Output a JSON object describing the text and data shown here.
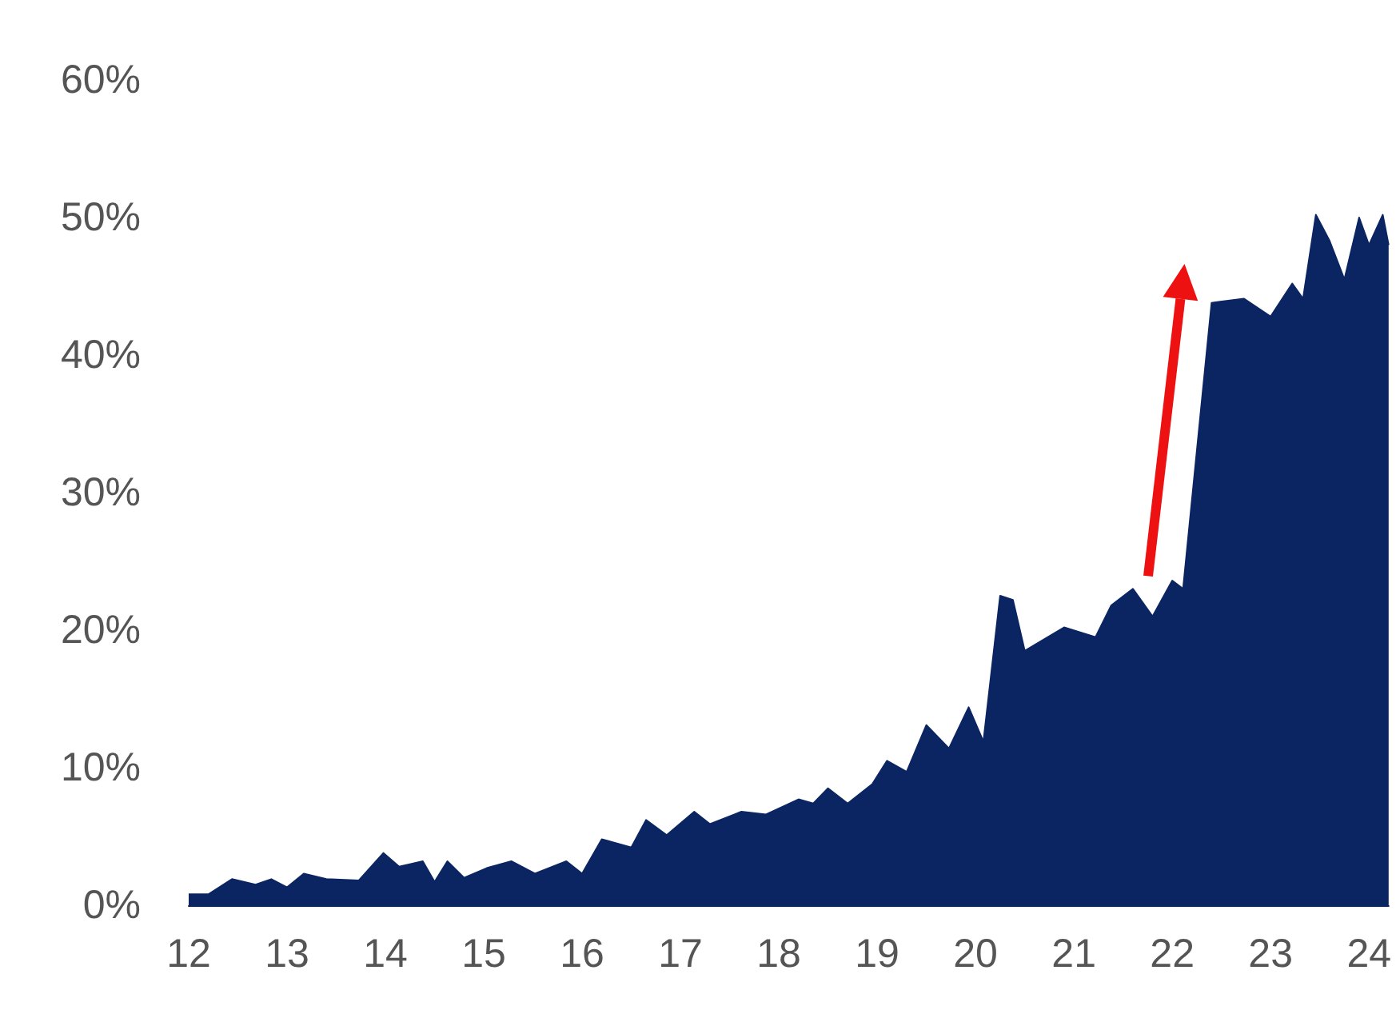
{
  "chart_data": {
    "type": "area",
    "grid": false,
    "xlim": [
      12,
      24.2
    ],
    "xticks": [
      12,
      13,
      14,
      15,
      16,
      17,
      18,
      19,
      20,
      21,
      22,
      23,
      24
    ],
    "ylim": [
      0,
      60
    ],
    "yticks": [
      {
        "value": 0,
        "label": "0%"
      },
      {
        "value": 10,
        "label": "10%"
      },
      {
        "value": 20,
        "label": "20%"
      },
      {
        "value": 30,
        "label": "30%"
      },
      {
        "value": 40,
        "label": "40%"
      },
      {
        "value": 50,
        "label": "50%"
      },
      {
        "value": 60,
        "label": "60%"
      }
    ],
    "series": [
      {
        "color": "#0b2562",
        "x": [
          12.0,
          12.2,
          12.44,
          12.68,
          12.84,
          13.0,
          13.17,
          13.4,
          13.73,
          13.98,
          14.14,
          14.38,
          14.5,
          14.63,
          14.8,
          15.03,
          15.28,
          15.52,
          15.84,
          16.0,
          16.2,
          16.5,
          16.65,
          16.86,
          17.14,
          17.3,
          17.62,
          17.87,
          18.2,
          18.35,
          18.5,
          18.7,
          18.95,
          19.1,
          19.3,
          19.5,
          19.73,
          19.93,
          20.08,
          20.25,
          20.38,
          20.5,
          20.9,
          21.22,
          21.38,
          21.6,
          21.8,
          22.0,
          22.11,
          22.4,
          22.73,
          23.0,
          23.22,
          23.33,
          23.46,
          23.6,
          23.75,
          23.9,
          24.0,
          24.14,
          24.2
        ],
        "values": [
          0.8,
          0.8,
          1.9,
          1.5,
          1.9,
          1.3,
          2.3,
          1.9,
          1.8,
          3.8,
          2.8,
          3.2,
          1.7,
          3.2,
          2.0,
          2.7,
          3.2,
          2.3,
          3.2,
          2.3,
          4.8,
          4.2,
          6.2,
          5.1,
          6.8,
          5.9,
          6.8,
          6.6,
          7.7,
          7.4,
          8.5,
          7.4,
          8.8,
          10.5,
          9.7,
          13.1,
          11.4,
          14.4,
          11.9,
          22.5,
          22.2,
          18.5,
          20.2,
          19.5,
          21.8,
          23.0,
          21.0,
          23.6,
          23.0,
          43.8,
          44.1,
          42.8,
          45.2,
          44.1,
          50.2,
          48.3,
          45.5,
          50.0,
          48.0,
          50.2,
          48.0
        ]
      }
    ]
  }
}
